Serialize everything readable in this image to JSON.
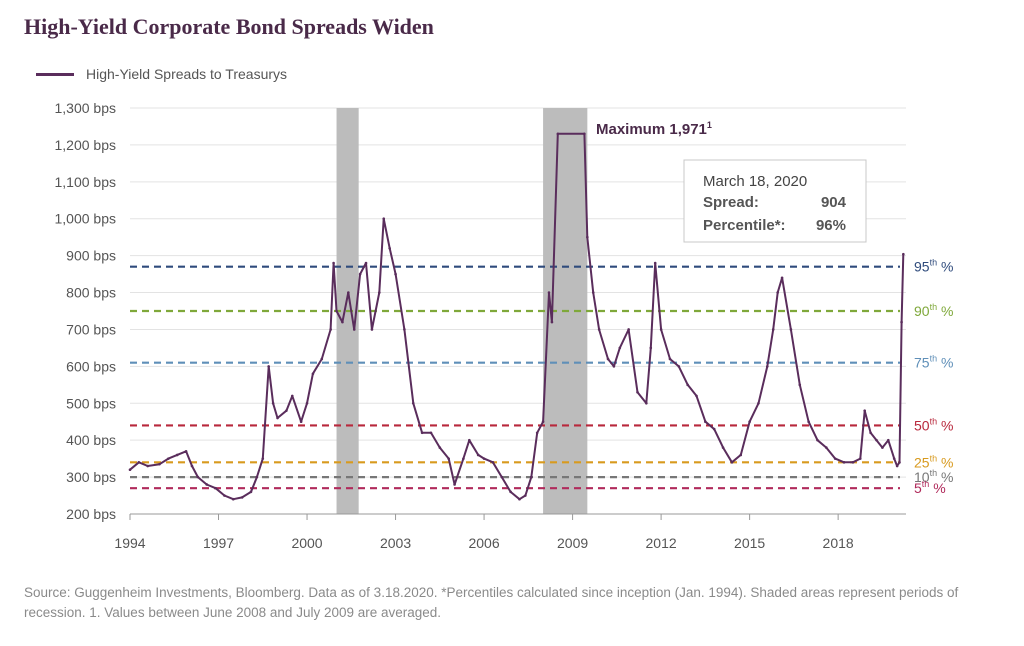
{
  "chart_data": {
    "type": "line",
    "title": "High-Yield Corporate Bond Spreads Widen",
    "legend": [
      "High-Yield Spreads to Treasurys"
    ],
    "legend_placement": "top-left",
    "ylim": [
      200,
      1300
    ],
    "xlim": [
      1994,
      2020.3
    ],
    "y_ticks": [
      200,
      300,
      400,
      500,
      600,
      700,
      800,
      900,
      1000,
      1100,
      1200,
      1300
    ],
    "y_tick_labels": [
      "200 bps",
      "300 bps",
      "400 bps",
      "500 bps",
      "600 bps",
      "700 bps",
      "800 bps",
      "900 bps",
      "1,000 bps",
      "1,100 bps",
      "1,200 bps",
      "1,300 bps"
    ],
    "x_ticks": [
      1994,
      1997,
      2000,
      2003,
      2006,
      2009,
      2012,
      2015,
      2018
    ],
    "x_tick_labels": [
      "1994",
      "1997",
      "2000",
      "2003",
      "2006",
      "2009",
      "2012",
      "2015",
      "2018"
    ],
    "grid": true,
    "recessions": [
      [
        2001.0,
        2001.75
      ],
      [
        2008.0,
        2009.5
      ]
    ],
    "series": [
      {
        "name": "High-Yield Spreads to Treasurys",
        "color": "#5a2d5c",
        "x": [
          1994.0,
          1994.3,
          1994.6,
          1995.0,
          1995.3,
          1995.6,
          1995.9,
          1996.1,
          1996.3,
          1996.6,
          1996.9,
          1997.2,
          1997.5,
          1997.8,
          1998.1,
          1998.3,
          1998.5,
          1998.7,
          1998.85,
          1999.0,
          1999.3,
          1999.5,
          1999.8,
          2000.0,
          2000.2,
          2000.5,
          2000.8,
          2000.9,
          2001.0,
          2001.2,
          2001.4,
          2001.6,
          2001.8,
          2002.0,
          2002.2,
          2002.45,
          2002.6,
          2002.8,
          2003.0,
          2003.3,
          2003.6,
          2003.9,
          2004.2,
          2004.5,
          2004.8,
          2005.0,
          2005.3,
          2005.5,
          2005.8,
          2006.0,
          2006.3,
          2006.6,
          2006.9,
          2007.2,
          2007.4,
          2007.6,
          2007.8,
          2008.0,
          2008.2,
          2008.3,
          2008.5,
          2009.4,
          2009.5,
          2009.7,
          2009.9,
          2010.2,
          2010.4,
          2010.6,
          2010.9,
          2011.2,
          2011.5,
          2011.65,
          2011.8,
          2012.0,
          2012.3,
          2012.6,
          2012.9,
          2013.2,
          2013.5,
          2013.8,
          2014.1,
          2014.4,
          2014.7,
          2015.0,
          2015.3,
          2015.6,
          2015.8,
          2015.95,
          2016.1,
          2016.4,
          2016.7,
          2017.0,
          2017.3,
          2017.6,
          2017.9,
          2018.2,
          2018.5,
          2018.75,
          2018.9,
          2019.1,
          2019.3,
          2019.5,
          2019.7,
          2019.9,
          2020.0,
          2020.08,
          2020.15,
          2020.21
        ],
        "y": [
          320,
          340,
          330,
          335,
          350,
          360,
          370,
          330,
          300,
          280,
          270,
          250,
          240,
          245,
          260,
          300,
          350,
          600,
          500,
          460,
          480,
          520,
          450,
          500,
          580,
          620,
          700,
          880,
          750,
          720,
          800,
          700,
          850,
          880,
          700,
          800,
          1000,
          920,
          850,
          700,
          500,
          420,
          420,
          380,
          350,
          280,
          350,
          400,
          360,
          350,
          340,
          300,
          260,
          240,
          250,
          300,
          420,
          450,
          800,
          720,
          1230,
          1230,
          950,
          800,
          700,
          620,
          600,
          650,
          700,
          530,
          500,
          650,
          880,
          700,
          620,
          600,
          550,
          520,
          450,
          430,
          380,
          340,
          360,
          450,
          500,
          600,
          700,
          800,
          840,
          700,
          550,
          450,
          400,
          380,
          350,
          340,
          340,
          350,
          480,
          420,
          400,
          380,
          400,
          350,
          330,
          340,
          720,
          904
        ],
        "averaged_note": "Values between June 2008 and July 2009 are averaged."
      }
    ],
    "reference_lines": [
      {
        "label_base": "95",
        "label_sup": "th",
        "label_tail": " %",
        "value": 870,
        "color": "#2f4b7c"
      },
      {
        "label_base": "90",
        "label_sup": "th",
        "label_tail": " %",
        "value": 750,
        "color": "#7fa83a"
      },
      {
        "label_base": "75",
        "label_sup": "th",
        "label_tail": " %",
        "value": 610,
        "color": "#5f8fb8"
      },
      {
        "label_base": "50",
        "label_sup": "th",
        "label_tail": " %",
        "value": 440,
        "color": "#b8283c"
      },
      {
        "label_base": "25",
        "label_sup": "th",
        "label_tail": " %",
        "value": 340,
        "color": "#d89a1e"
      },
      {
        "label_base": "10",
        "label_sup": "th",
        "label_tail": " %",
        "value": 300,
        "color": "#777777"
      },
      {
        "label_base": "5",
        "label_sup": "th",
        "label_tail": " %",
        "value": 270,
        "color": "#b02a5b"
      }
    ],
    "annotations": {
      "maximum_label": "Maximum 1,971",
      "maximum_sup": "1",
      "callout_date": "March 18, 2020",
      "callout_spread_label": "Spread:",
      "callout_spread_value": "904",
      "callout_pct_label": "Percentile*:",
      "callout_pct_value": "96%"
    }
  },
  "footer": {
    "source": "Source: Guggenheim Investments, Bloomberg. Data as of 3.18.2020. *Percentiles calculated since inception (Jan. 1994). Shaded areas represent periods of recession. 1. Values between June 2008 and July 2009 are averaged."
  }
}
